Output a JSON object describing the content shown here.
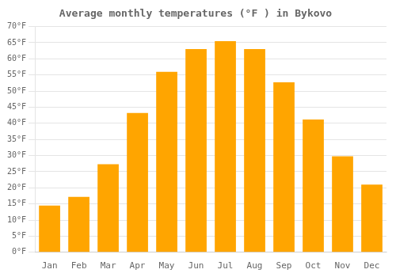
{
  "chart_data": {
    "type": "bar",
    "title": "Average monthly temperatures (°F ) in Bykovo",
    "categories": [
      "Jan",
      "Feb",
      "Mar",
      "Apr",
      "May",
      "Jun",
      "Jul",
      "Aug",
      "Sep",
      "Oct",
      "Nov",
      "Dec"
    ],
    "values": [
      14.5,
      17.2,
      27.3,
      43.2,
      56.0,
      63.0,
      65.5,
      63.0,
      52.7,
      41.2,
      29.8,
      21.0
    ],
    "color": "#FFA500",
    "ylim": [
      0,
      70
    ],
    "yticks": [
      {
        "value": 0,
        "label": "0°F"
      },
      {
        "value": 5,
        "label": "5°F"
      },
      {
        "value": 10,
        "label": "10°F"
      },
      {
        "value": 15,
        "label": "15°F"
      },
      {
        "value": 20,
        "label": "20°F"
      },
      {
        "value": 25,
        "label": "25°F"
      },
      {
        "value": 30,
        "label": "30°F"
      },
      {
        "value": 35,
        "label": "35°F"
      },
      {
        "value": 40,
        "label": "40°F"
      },
      {
        "value": 45,
        "label": "45°F"
      },
      {
        "value": 50,
        "label": "50°F"
      },
      {
        "value": 55,
        "label": "55°F"
      },
      {
        "value": 60,
        "label": "60°F"
      },
      {
        "value": 65,
        "label": "65°F"
      },
      {
        "value": 70,
        "label": "70°F"
      }
    ],
    "grid": true
  }
}
